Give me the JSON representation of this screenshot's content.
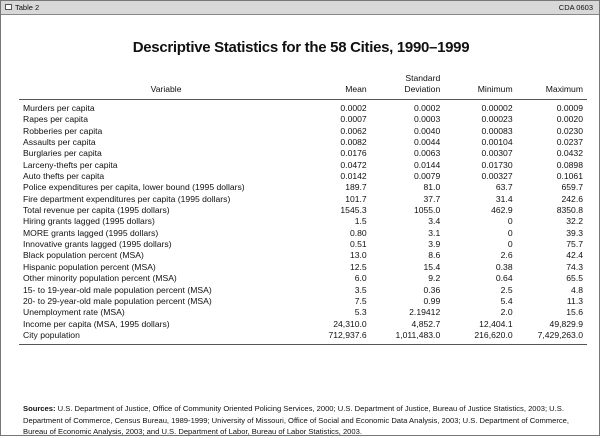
{
  "header": {
    "label": "Table 2",
    "code": "CDA 0603"
  },
  "title": "Descriptive Statistics for the 58 Cities, 1990–1999",
  "table": {
    "columns": [
      "Variable",
      "Mean",
      "Standard Deviation",
      "Minimum",
      "Maximum"
    ],
    "rows": [
      [
        "Murders per capita",
        "0.0002",
        "0.0002",
        "0.00002",
        "0.0009"
      ],
      [
        "Rapes per capita",
        "0.0007",
        "0.0003",
        "0.00023",
        "0.0020"
      ],
      [
        "Robberies per capita",
        "0.0062",
        "0.0040",
        "0.00083",
        "0.0230"
      ],
      [
        "Assaults per capita",
        "0.0082",
        "0.0044",
        "0.00104",
        "0.0237"
      ],
      [
        "Burglaries per capita",
        "0.0176",
        "0.0063",
        "0.00307",
        "0.0432"
      ],
      [
        "Larceny-thefts per capita",
        "0.0472",
        "0.0144",
        "0.01730",
        "0.0898"
      ],
      [
        "Auto thefts per capita",
        "0.0142",
        "0.0079",
        "0.00327",
        "0.1061"
      ],
      [
        "Police expenditures per capita, lower bound (1995 dollars)",
        "189.7",
        "81.0",
        "63.7",
        "659.7"
      ],
      [
        "Fire department expenditures per capita (1995 dollars)",
        "101.7",
        "37.7",
        "31.4",
        "242.6"
      ],
      [
        "Total revenue per capita (1995 dollars)",
        "1545.3",
        "1055.0",
        "462.9",
        "8350.8"
      ],
      [
        "Hiring grants lagged (1995 dollars)",
        "1.5",
        "3.4",
        "0",
        "32.2"
      ],
      [
        "MORE grants lagged (1995 dollars)",
        "0.80",
        "3.1",
        "0",
        "39.3"
      ],
      [
        "Innovative grants lagged (1995 dollars)",
        "0.51",
        "3.9",
        "0",
        "75.7"
      ],
      [
        "Black population percent (MSA)",
        "13.0",
        "8.6",
        "2.6",
        "42.4"
      ],
      [
        "Hispanic population percent (MSA)",
        "12.5",
        "15.4",
        "0.38",
        "74.3"
      ],
      [
        "Other minority population percent (MSA)",
        "6.0",
        "9.2",
        "0.64",
        "65.5"
      ],
      [
        "15- to 19-year-old male population percent (MSA)",
        "3.5",
        "0.36",
        "2.5",
        "4.8"
      ],
      [
        "20- to 29-year-old male population percent (MSA)",
        "7.5",
        "0.99",
        "5.4",
        "11.3"
      ],
      [
        "Unemployment rate (MSA)",
        "5.3",
        "2.19412",
        "2.0",
        "15.6"
      ],
      [
        "Income per capita (MSA, 1995 dollars)",
        "24,310.0",
        "4,852.7",
        "12,404.1",
        "49,829.9"
      ],
      [
        "City population",
        "712,937.6",
        "1,011,483.0",
        "216,620.0",
        "7,429,263.0"
      ]
    ]
  },
  "sources": {
    "label": "Sources:",
    "text": "U.S. Department of Justice, Office of Community Oriented Policing Services, 2000; U.S. Department of Justice, Bureau of Justice Statistics, 2003; U.S. Department of Commerce, Census Bureau, 1989-1999; University of Missouri, Office of Social and Economic Data Analysis, 2003; U.S. Department of Commerce, Bureau of Economic Analysis, 2003; and U.S. Department of Labor, Bureau of Labor Statistics, 2003."
  }
}
